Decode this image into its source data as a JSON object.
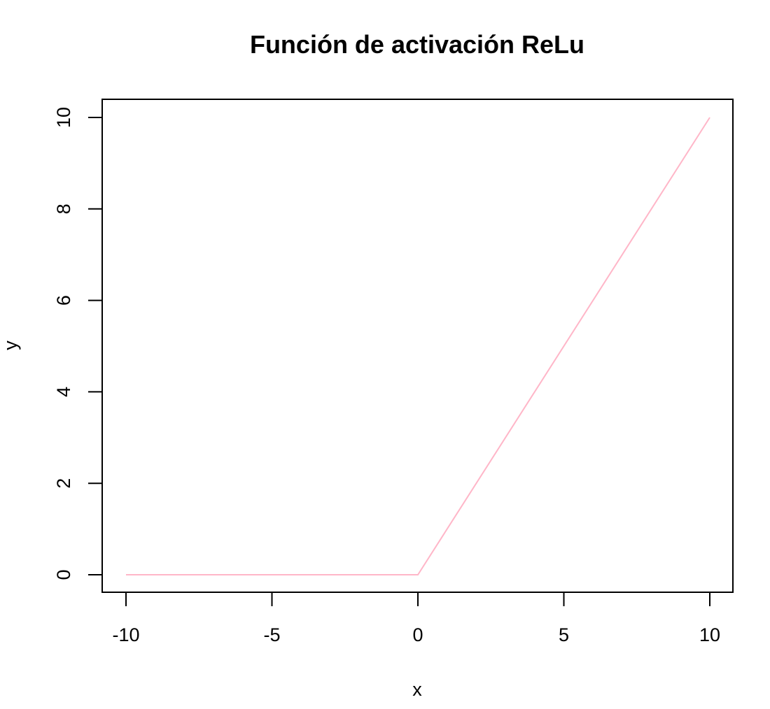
{
  "chart_data": {
    "type": "line",
    "title": "Función de activación ReLu",
    "xlabel": "x",
    "ylabel": "y",
    "xlim": [
      -10,
      10
    ],
    "ylim": [
      0,
      10
    ],
    "x_ticks": [
      -10,
      -5,
      0,
      5,
      10
    ],
    "y_ticks": [
      0,
      2,
      4,
      6,
      8,
      10
    ],
    "grid": false,
    "series": [
      {
        "color": "#ffb6c8",
        "x": [
          -10,
          0,
          10
        ],
        "y": [
          0,
          0,
          10
        ]
      }
    ]
  }
}
